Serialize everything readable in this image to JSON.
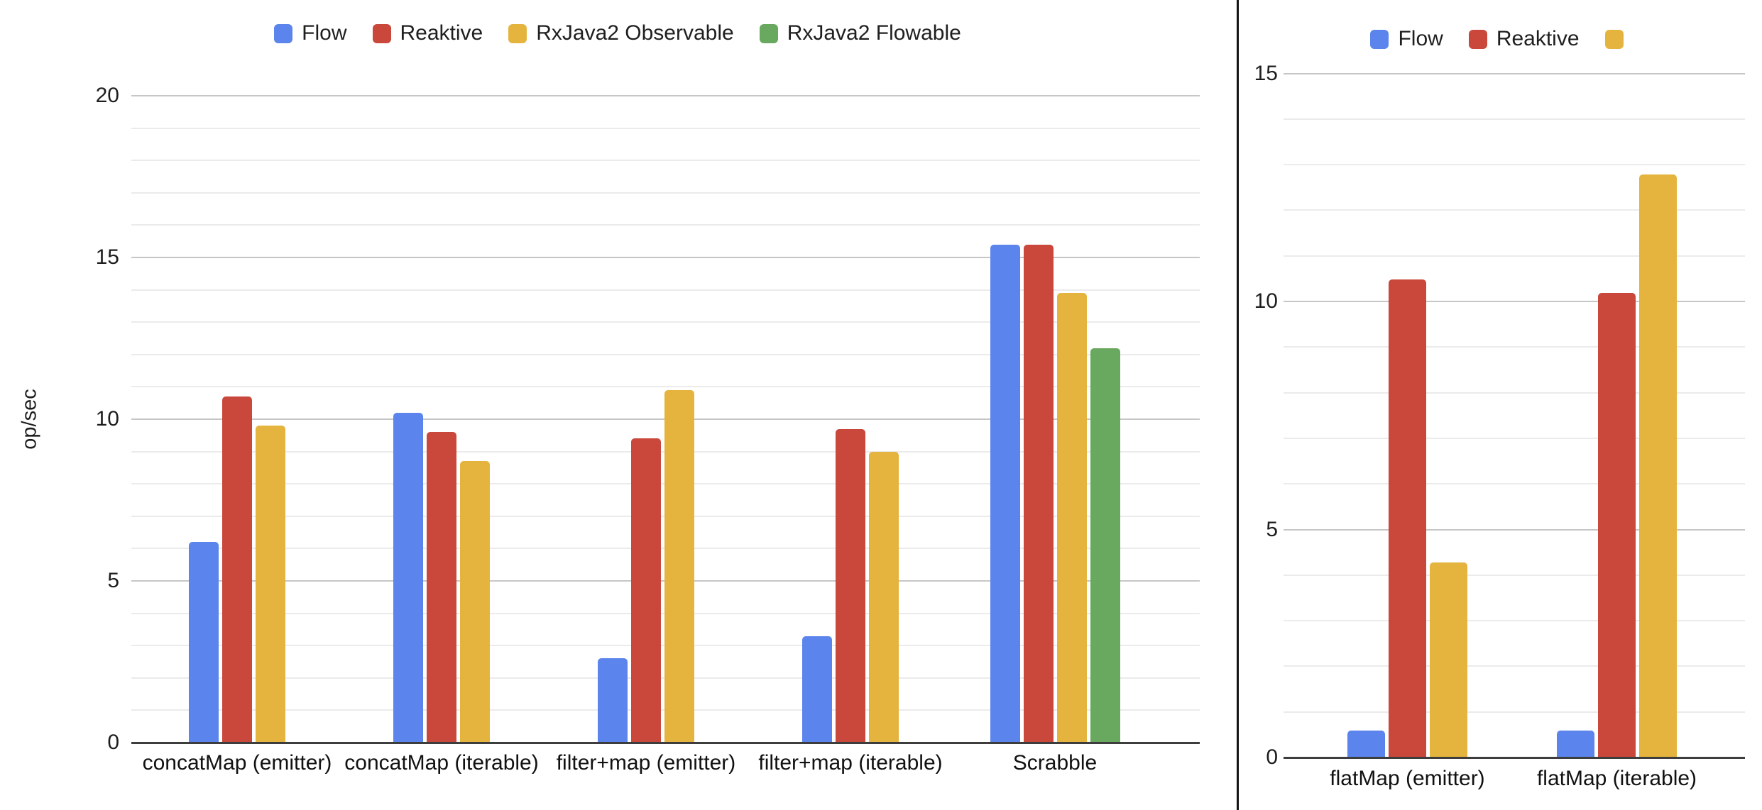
{
  "chart_data": [
    {
      "id": "operators-benchmark",
      "type": "bar",
      "title": "",
      "ylabel": "op/sec",
      "xlabel": "",
      "ylim": [
        0,
        20
      ],
      "y_ticks": [
        0,
        5,
        10,
        15,
        20
      ],
      "minor_grid_step": 1,
      "grid": "on",
      "legend_position": "top",
      "categories": [
        "concatMap (emitter)",
        "concatMap (iterable)",
        "filter+map (emitter)",
        "filter+map (iterable)",
        "Scrabble"
      ],
      "series": [
        {
          "name": "Flow",
          "color": "#5b84ec",
          "values": [
            6.2,
            10.2,
            2.6,
            3.3,
            15.4
          ]
        },
        {
          "name": "Reaktive",
          "color": "#c9473b",
          "values": [
            10.7,
            9.6,
            9.4,
            9.7,
            15.4
          ]
        },
        {
          "name": "RxJava2 Observable",
          "color": "#e5b43e",
          "values": [
            9.8,
            8.7,
            10.9,
            9.0,
            13.9
          ]
        },
        {
          "name": "RxJava2 Flowable",
          "color": "#69a85f",
          "values": [
            null,
            null,
            null,
            null,
            12.2
          ]
        }
      ]
    },
    {
      "id": "flatmap-benchmark",
      "type": "bar",
      "title": "",
      "ylabel": "",
      "xlabel": "",
      "ylim": [
        0,
        15
      ],
      "y_ticks": [
        0,
        5,
        10,
        15
      ],
      "minor_grid_step": 1,
      "grid": "on",
      "legend_position": "top",
      "categories": [
        "flatMap (emitter)",
        "flatMap (iterable)"
      ],
      "series": [
        {
          "name": "Flow",
          "color": "#5b84ec",
          "values": [
            0.6,
            0.6
          ]
        },
        {
          "name": "Reaktive",
          "color": "#c9473b",
          "values": [
            10.5,
            10.2
          ]
        },
        {
          "name": "",
          "color": "#e5b43e",
          "values": [
            4.3,
            12.8
          ]
        }
      ]
    }
  ]
}
